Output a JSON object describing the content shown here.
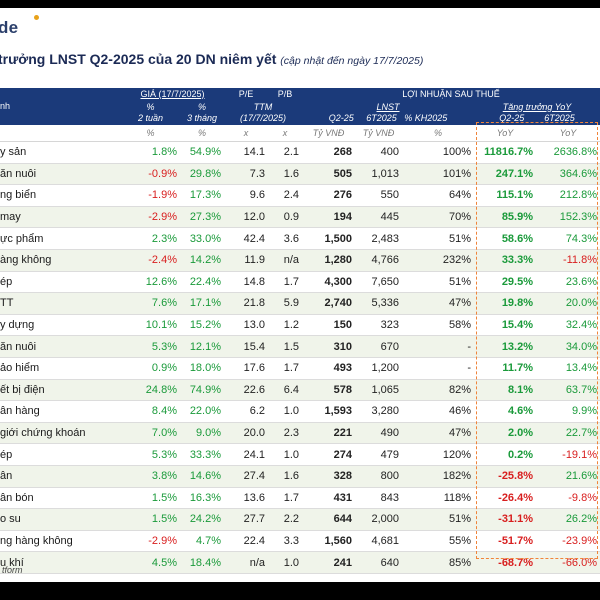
{
  "logo_text": "de",
  "title": {
    "main": "trưởng LNST Q2-2025 của 20 DN niêm yết",
    "sub": "(cập nhật đến ngày 17/7/2025)"
  },
  "header": {
    "name_col": "nh",
    "gia": "GIÁ (17/7/2025)",
    "pe": "P/E",
    "pb": "P/B",
    "lnst": "LỢI NHUẬN SAU THUẾ",
    "pct": "%",
    "tuan2": "2 tuần",
    "thang3": "3 tháng",
    "ttm": "TTM",
    "ttm_date": "(17/7/2025)",
    "lnst_sub": "LNST",
    "growth": "Tăng trưởng YoY",
    "q225": "Q2-25",
    "t6": "6T2025",
    "kh": "% KH2025",
    "q225b": "Q2-25",
    "t6b": "6T2025"
  },
  "units": {
    "u1": "%",
    "u2": "%",
    "u3": "x",
    "u4": "x",
    "u5": "Tỷ VNĐ",
    "u6": "Tỷ VNĐ",
    "u7": "%",
    "u8": "YoY",
    "u9": "YoY"
  },
  "rows": [
    {
      "name": "y sản",
      "w2": "1.8%",
      "m3": "54.9%",
      "pe": "14.1",
      "pb": "2.1",
      "q2": "268",
      "t6": "400",
      "kh": "100%",
      "gq": "11816.7%",
      "gt": "2636.8%"
    },
    {
      "name": "ăn nuôi",
      "w2": "-0.9%",
      "m3": "29.8%",
      "pe": "7.3",
      "pb": "1.6",
      "q2": "505",
      "t6": "1,013",
      "kh": "101%",
      "gq": "247.1%",
      "gt": "364.6%"
    },
    {
      "name": "ng biển",
      "w2": "-1.9%",
      "m3": "17.3%",
      "pe": "9.6",
      "pb": "2.4",
      "q2": "276",
      "t6": "550",
      "kh": "64%",
      "gq": "115.1%",
      "gt": "212.8%"
    },
    {
      "name": "may",
      "w2": "-2.9%",
      "m3": "27.3%",
      "pe": "12.0",
      "pb": "0.9",
      "q2": "194",
      "t6": "445",
      "kh": "70%",
      "gq": "85.9%",
      "gt": "152.3%"
    },
    {
      "name": "ực phẩm",
      "w2": "2.3%",
      "m3": "33.0%",
      "pe": "42.4",
      "pb": "3.6",
      "q2": "1,500",
      "t6": "2,483",
      "kh": "51%",
      "gq": "58.6%",
      "gt": "74.3%"
    },
    {
      "name": "àng không",
      "w2": "-2.4%",
      "m3": "14.2%",
      "pe": "11.9",
      "pb": "n/a",
      "q2": "1,280",
      "t6": "4,766",
      "kh": "232%",
      "gq": "33.3%",
      "gt": "-11.8%"
    },
    {
      "name": "ép",
      "w2": "12.6%",
      "m3": "22.4%",
      "pe": "14.8",
      "pb": "1.7",
      "q2": "4,300",
      "t6": "7,650",
      "kh": "51%",
      "gq": "29.5%",
      "gt": "23.6%"
    },
    {
      "name": "TT",
      "w2": "7.6%",
      "m3": "17.1%",
      "pe": "21.8",
      "pb": "5.9",
      "q2": "2,740",
      "t6": "5,336",
      "kh": "47%",
      "gq": "19.8%",
      "gt": "20.0%"
    },
    {
      "name": "y dựng",
      "w2": "10.1%",
      "m3": "15.2%",
      "pe": "13.0",
      "pb": "1.2",
      "q2": "150",
      "t6": "323",
      "kh": "58%",
      "gq": "15.4%",
      "gt": "32.4%"
    },
    {
      "name": "ăn nuôi",
      "w2": "5.3%",
      "m3": "12.1%",
      "pe": "15.4",
      "pb": "1.5",
      "q2": "310",
      "t6": "670",
      "kh": "-",
      "gq": "13.2%",
      "gt": "34.0%"
    },
    {
      "name": "ảo hiểm",
      "w2": "0.9%",
      "m3": "18.0%",
      "pe": "17.6",
      "pb": "1.7",
      "q2": "493",
      "t6": "1,200",
      "kh": "-",
      "gq": "11.7%",
      "gt": "13.4%"
    },
    {
      "name": "ết bị điện",
      "w2": "24.8%",
      "m3": "74.9%",
      "pe": "22.6",
      "pb": "6.4",
      "q2": "578",
      "t6": "1,065",
      "kh": "82%",
      "gq": "8.1%",
      "gt": "63.7%"
    },
    {
      "name": "ân hàng",
      "w2": "8.4%",
      "m3": "22.0%",
      "pe": "6.2",
      "pb": "1.0",
      "q2": "1,593",
      "t6": "3,280",
      "kh": "46%",
      "gq": "4.6%",
      "gt": "9.9%"
    },
    {
      "name": "giới chứng khoán",
      "w2": "7.0%",
      "m3": "9.0%",
      "pe": "20.0",
      "pb": "2.3",
      "q2": "221",
      "t6": "490",
      "kh": "47%",
      "gq": "2.0%",
      "gt": "22.7%"
    },
    {
      "name": "ép",
      "w2": "5.3%",
      "m3": "33.3%",
      "pe": "24.1",
      "pb": "1.0",
      "q2": "274",
      "t6": "479",
      "kh": "120%",
      "gq": "0.2%",
      "gt": "-19.1%"
    },
    {
      "name": "ân",
      "w2": "3.8%",
      "m3": "14.6%",
      "pe": "27.4",
      "pb": "1.6",
      "q2": "328",
      "t6": "800",
      "kh": "182%",
      "gq": "-25.8%",
      "gt": "21.6%"
    },
    {
      "name": "ân bón",
      "w2": "1.5%",
      "m3": "16.3%",
      "pe": "13.6",
      "pb": "1.7",
      "q2": "431",
      "t6": "843",
      "kh": "118%",
      "gq": "-26.4%",
      "gt": "-9.8%"
    },
    {
      "name": "o su",
      "w2": "1.5%",
      "m3": "24.2%",
      "pe": "27.7",
      "pb": "2.2",
      "q2": "644",
      "t6": "2,000",
      "kh": "51%",
      "gq": "-31.1%",
      "gt": "26.2%"
    },
    {
      "name": "ng hàng không",
      "w2": "-2.9%",
      "m3": "4.7%",
      "pe": "22.4",
      "pb": "3.3",
      "q2": "1,560",
      "t6": "4,681",
      "kh": "55%",
      "gq": "-51.7%",
      "gt": "-23.9%"
    },
    {
      "name": "u khí",
      "w2": "4.5%",
      "m3": "18.4%",
      "pe": "n/a",
      "pb": "1.0",
      "q2": "241",
      "t6": "640",
      "kh": "85%",
      "gq": "-68.7%",
      "gt": "-66.0%"
    }
  ],
  "footer": "tform",
  "colors": {
    "header_bg": "#1b3a7a",
    "positive": "#1a9a3a",
    "negative": "#d81e1e",
    "highlight_border": "#f0843a"
  }
}
